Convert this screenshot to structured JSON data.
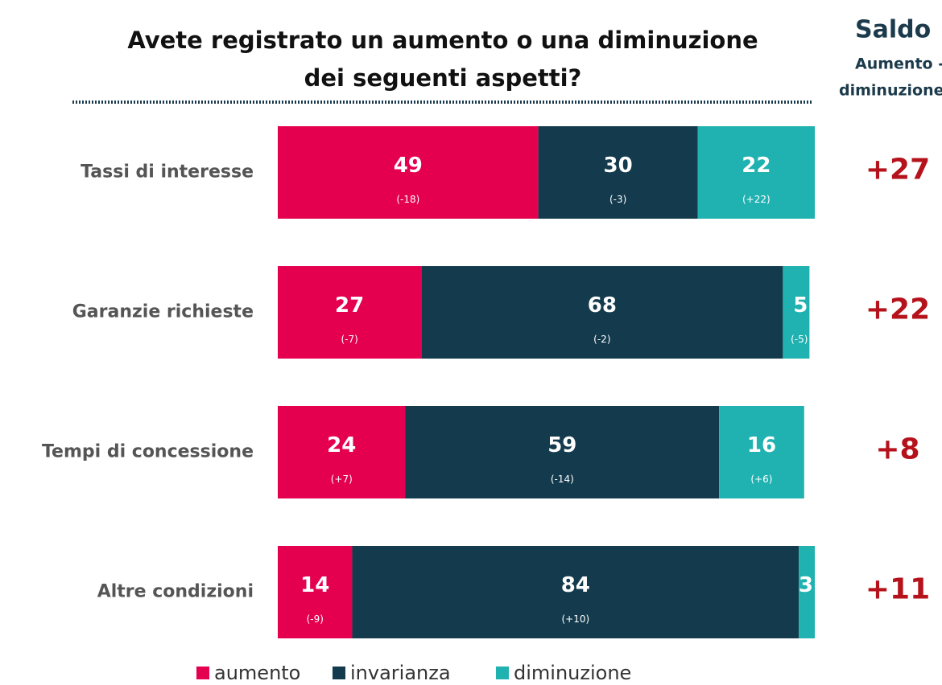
{
  "chart_data": {
    "type": "stacked-bar-horizontal",
    "title_lines": [
      "Avete registrato un aumento o una diminuzione",
      "dei seguenti aspetti?"
    ],
    "categories": [
      "Tassi di interesse",
      "Garanzie richieste",
      "Tempi di concessione",
      "Altre condizioni"
    ],
    "xlim": [
      0,
      101
    ],
    "series": [
      {
        "name": "aumento",
        "color": "#e4004f",
        "values": [
          49,
          27,
          24,
          14
        ],
        "changes": [
          "(-18)",
          "(-7)",
          "(+7)",
          "(-9)"
        ]
      },
      {
        "name": "invarianza",
        "color": "#143b4d",
        "values": [
          30,
          68,
          59,
          84
        ],
        "changes": [
          "(-3)",
          "(-2)",
          "(-14)",
          "(+10)"
        ]
      },
      {
        "name": "diminuzione",
        "color": "#20b2b0",
        "values": [
          22,
          5,
          16,
          3
        ],
        "changes": [
          "(+22)",
          "(-5)",
          "(+6)",
          null
        ]
      }
    ],
    "saldo": {
      "title": "Saldo",
      "subtitle_lines": [
        "Aumento -",
        "diminuzione"
      ],
      "color": "#b5121b",
      "values": [
        27,
        22,
        8,
        11
      ],
      "value_labels": [
        "+27",
        "+22",
        "+8",
        "+11"
      ]
    }
  }
}
